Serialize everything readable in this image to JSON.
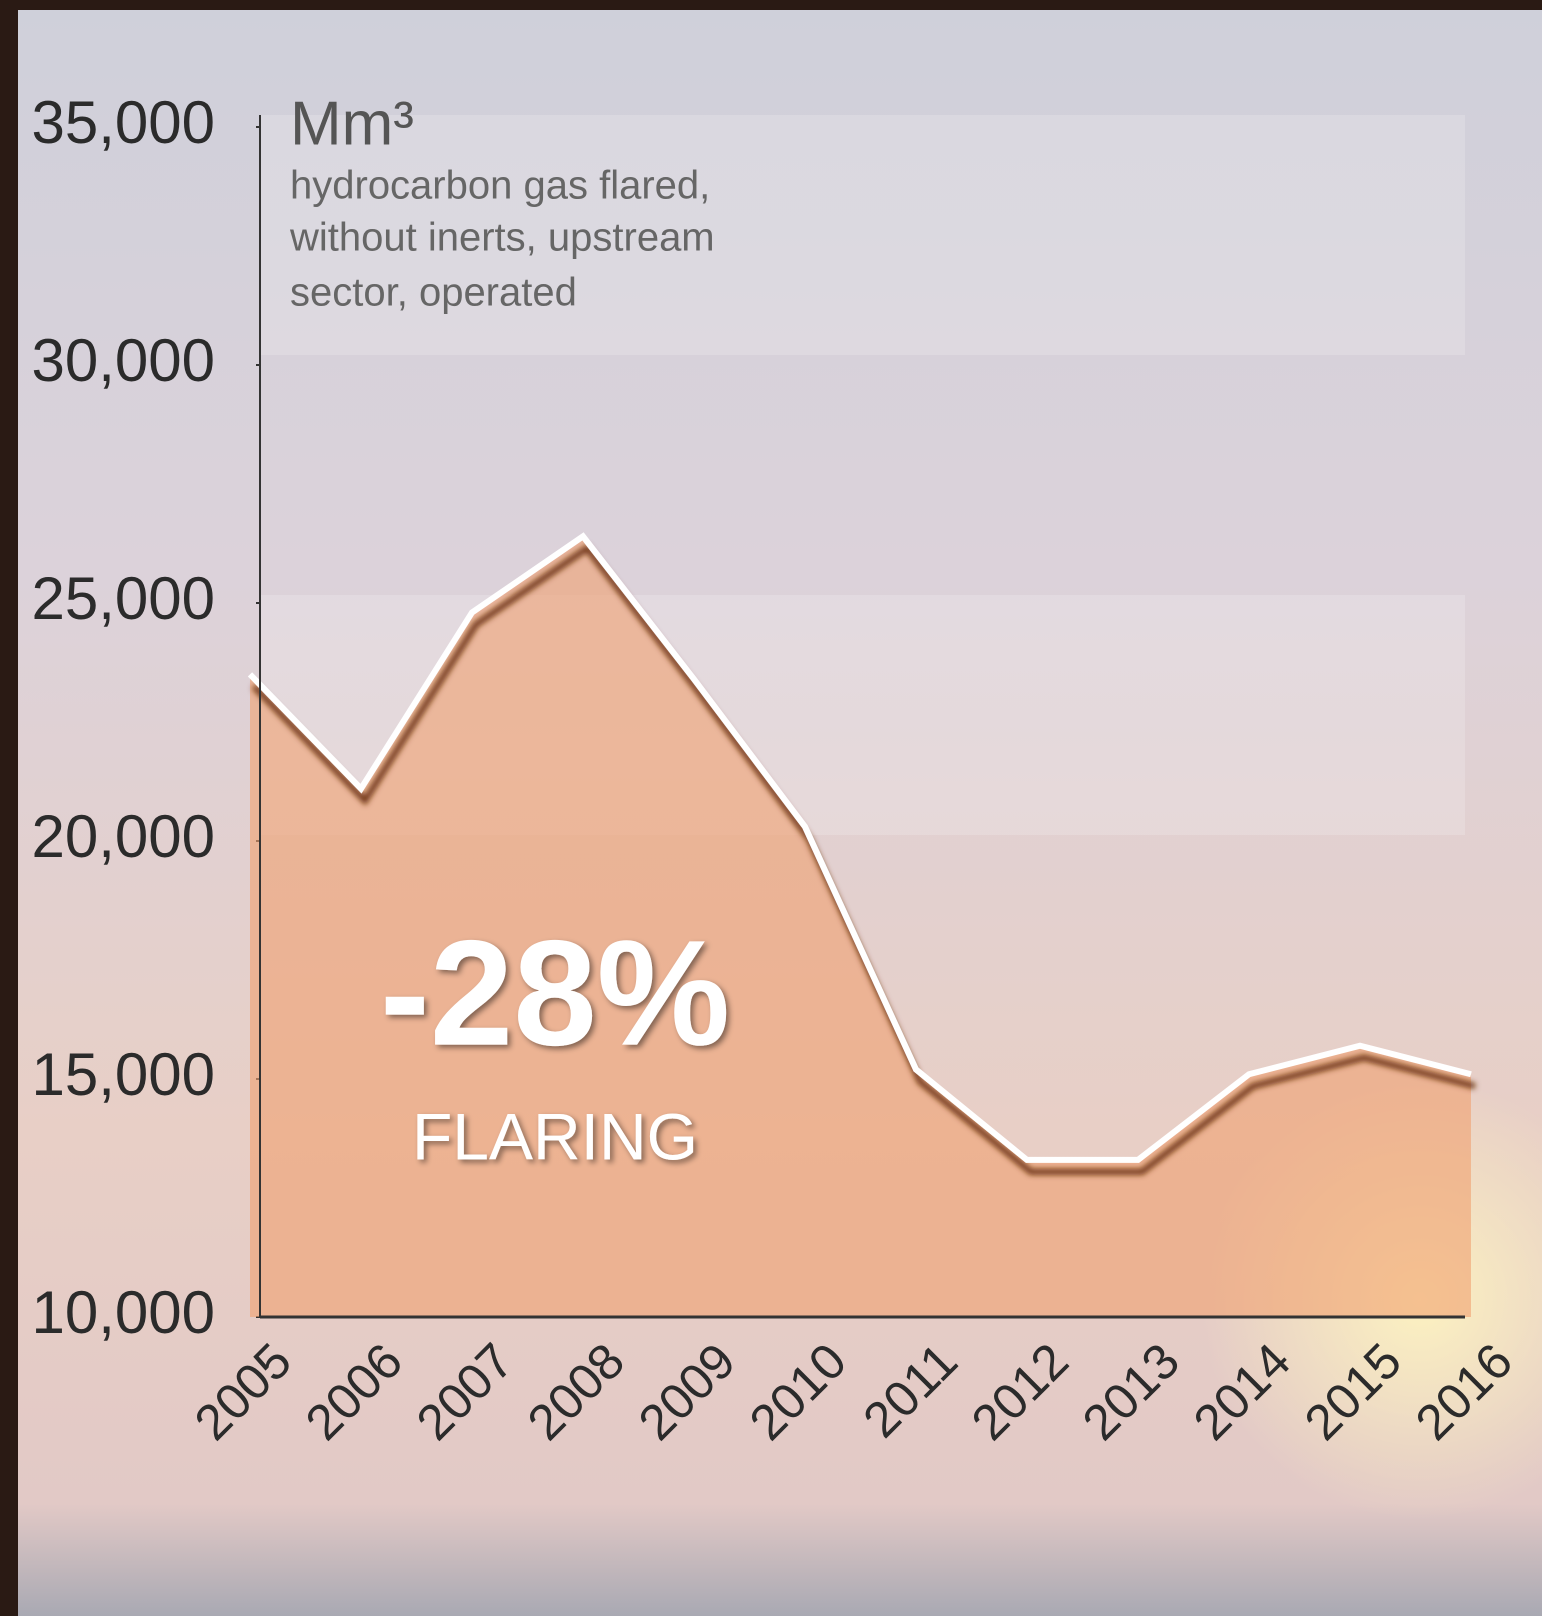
{
  "chart_data": {
    "type": "area",
    "unit": "Mm³",
    "subtitle_lines": [
      "hydrocarbon gas flared,",
      "without inerts, upstream",
      "sector, operated"
    ],
    "annotation": {
      "value": "-28%",
      "label": "FLARING"
    },
    "categories": [
      "2005",
      "2006",
      "2007",
      "2008",
      "2009",
      "2010",
      "2011",
      "2012",
      "2013",
      "2014",
      "2015",
      "2016"
    ],
    "values": [
      23500,
      21100,
      24800,
      26400,
      23400,
      20300,
      15200,
      13300,
      13300,
      15100,
      15700,
      15100
    ],
    "color": "#f0a070",
    "line_color": "#ffffff",
    "ylim": [
      10000,
      35000
    ],
    "yticks": [
      {
        "value": 10000,
        "label": "10,000"
      },
      {
        "value": 15000,
        "label": "15,000"
      },
      {
        "value": 20000,
        "label": "20,000"
      },
      {
        "value": 25000,
        "label": "25,000"
      },
      {
        "value": 30000,
        "label": "30,000"
      },
      {
        "value": 35000,
        "label": "35,000"
      }
    ]
  }
}
